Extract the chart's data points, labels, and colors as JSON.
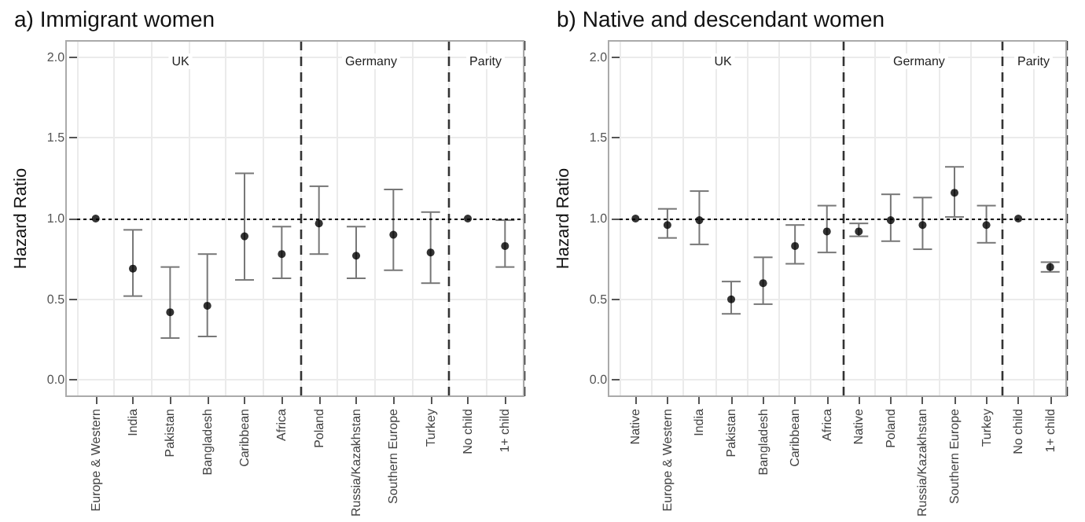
{
  "chart_data": [
    {
      "type": "scatter",
      "title": "a) Immigrant women",
      "ylabel": "Hazard Ratio",
      "categories": [
        "Europe & Western",
        "India",
        "Pakistan",
        "Bangladesh",
        "Caribbean",
        "Africa",
        "Poland",
        "Russia/Kazakhstan",
        "Southern Europe",
        "Turkey",
        "No child",
        "1+ child"
      ],
      "series": [
        {
          "color": "#000000",
          "values": [
            1.0,
            0.69,
            0.42,
            0.46,
            0.89,
            0.78,
            0.97,
            0.77,
            0.9,
            0.79,
            1.0,
            0.83
          ],
          "errors": [
            null,
            [
              0.52,
              0.93
            ],
            [
              0.26,
              0.7
            ],
            [
              0.27,
              0.78
            ],
            [
              0.62,
              1.28
            ],
            [
              0.63,
              0.95
            ],
            [
              0.78,
              1.2
            ],
            [
              0.63,
              0.95
            ],
            [
              0.68,
              1.18
            ],
            [
              0.6,
              1.04
            ],
            null,
            [
              0.7,
              0.99
            ]
          ]
        }
      ],
      "ylim": [
        -0.1,
        2.1
      ],
      "yticks": [
        {
          "value": 0,
          "label": "0.0"
        },
        {
          "value": 0.5,
          "label": "0.5"
        },
        {
          "value": 1,
          "label": "1.0"
        },
        {
          "value": 1.5,
          "label": "1.5"
        },
        {
          "value": 2,
          "label": "2.0"
        }
      ],
      "ref_lines": [
        {
          "axis": "y",
          "value": 1,
          "line_style": "dotted",
          "color": "#000000"
        }
      ],
      "annotations": [
        "UK",
        "Germany",
        "Parity"
      ],
      "grid": true,
      "marker": "circle"
    },
    {
      "type": "scatter",
      "title": "b) Native and descendant women",
      "ylabel": "Hazard Ratio",
      "categories": [
        "Native",
        "Europe & Western",
        "India",
        "Pakistan",
        "Bangladesh",
        "Caribbean",
        "Africa",
        "Native",
        "Poland",
        "Russia/Kazakhstan",
        "Southern Europe",
        "Turkey",
        "No child",
        "1+ child"
      ],
      "series": [
        {
          "color": "#000000",
          "values": [
            1.0,
            0.96,
            0.99,
            0.5,
            0.6,
            0.83,
            0.92,
            0.92,
            0.99,
            0.96,
            1.16,
            0.96,
            1.0,
            0.7
          ],
          "errors": [
            null,
            [
              0.88,
              1.06
            ],
            [
              0.84,
              1.17
            ],
            [
              0.41,
              0.61
            ],
            [
              0.47,
              0.76
            ],
            [
              0.72,
              0.96
            ],
            [
              0.79,
              1.08
            ],
            [
              0.89,
              0.97
            ],
            [
              0.86,
              1.15
            ],
            [
              0.81,
              1.13
            ],
            [
              1.01,
              1.32
            ],
            [
              0.85,
              1.08
            ],
            null,
            [
              0.67,
              0.73
            ]
          ]
        }
      ],
      "ylim": [
        -0.1,
        2.1
      ],
      "yticks": [
        {
          "value": 0,
          "label": "0.0"
        },
        {
          "value": 0.5,
          "label": "0.5"
        },
        {
          "value": 1,
          "label": "1.0"
        },
        {
          "value": 1.5,
          "label": "1.5"
        },
        {
          "value": 2,
          "label": "2.0"
        }
      ],
      "ref_lines": [
        {
          "axis": "y",
          "value": 1,
          "line_style": "dotted",
          "color": "#000000"
        }
      ],
      "annotations": [
        "UK",
        "Germany",
        "Parity"
      ],
      "grid": true,
      "marker": "circle"
    }
  ]
}
